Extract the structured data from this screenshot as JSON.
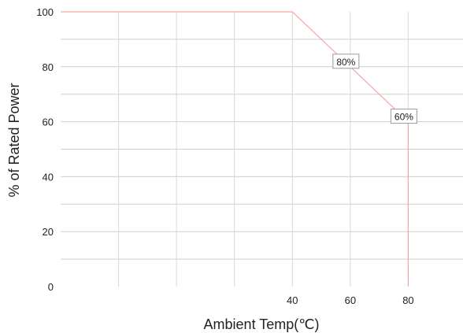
{
  "chart_data": {
    "type": "line",
    "title": "",
    "xlabel": "Ambient Temp(℃)",
    "ylabel": "% of Rated Power",
    "xlim": [
      -40,
      100
    ],
    "ylim": [
      0,
      100
    ],
    "x_ticks": [
      40,
      60,
      80
    ],
    "y_ticks": [
      0,
      20,
      40,
      60,
      80,
      100
    ],
    "x_gridlines": [
      -20,
      0,
      20,
      40,
      60,
      80
    ],
    "y_gridlines": [
      10,
      20,
      30,
      40,
      50,
      60,
      70,
      80,
      90
    ],
    "grid": true,
    "series": [
      {
        "x": [
          -40,
          40,
          80,
          80
        ],
        "y": [
          100,
          100,
          60,
          0
        ],
        "color": "#f4a6a6"
      }
    ],
    "annotations": [
      {
        "text": "80%",
        "x": 60,
        "y": 80
      },
      {
        "text": "60%",
        "x": 80,
        "y": 60
      }
    ]
  }
}
